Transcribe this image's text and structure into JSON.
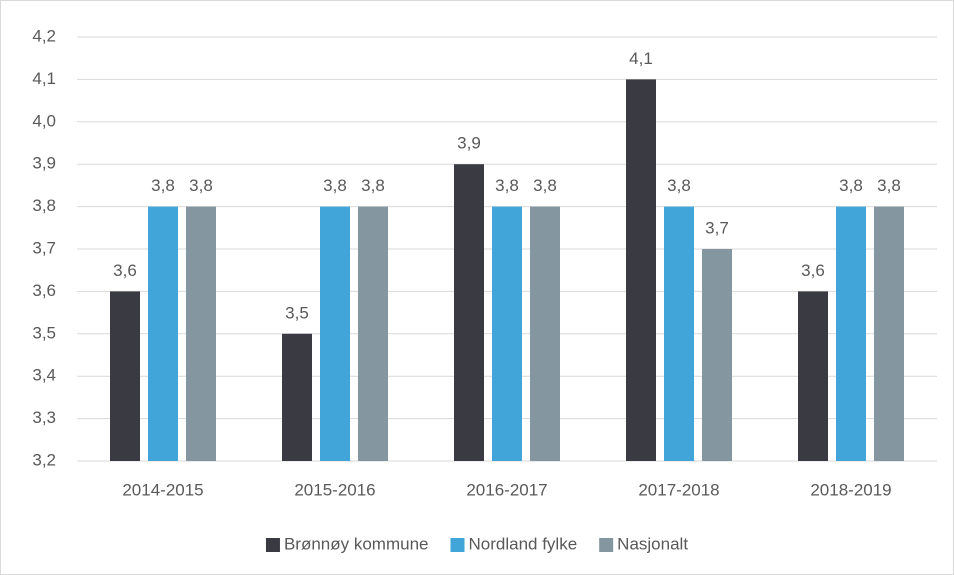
{
  "chart_data": {
    "type": "bar",
    "categories": [
      "2014-2015",
      "2015-2016",
      "2016-2017",
      "2017-2018",
      "2018-2019"
    ],
    "series": [
      {
        "name": "Brønnøy kommune",
        "color": "#3a3b42",
        "values": [
          3.6,
          3.5,
          3.9,
          4.1,
          3.6
        ],
        "value_labels": [
          "3,6",
          "3,5",
          "3,9",
          "4,1",
          "3,6"
        ]
      },
      {
        "name": "Nordland fylke",
        "color": "#41a5d9",
        "values": [
          3.8,
          3.8,
          3.8,
          3.8,
          3.8
        ],
        "value_labels": [
          "3,8",
          "3,8",
          "3,8",
          "3,8",
          "3,8"
        ]
      },
      {
        "name": "Nasjonalt",
        "color": "#8496a0",
        "values": [
          3.8,
          3.8,
          3.8,
          3.7,
          3.8
        ],
        "value_labels": [
          "3,8",
          "3,8",
          "3,8",
          "3,7",
          "3,8"
        ]
      }
    ],
    "ylim": [
      3.2,
      4.2
    ],
    "yticks": [
      {
        "value": 3.2,
        "label": "3,2"
      },
      {
        "value": 3.3,
        "label": "3,3"
      },
      {
        "value": 3.4,
        "label": "3,4"
      },
      {
        "value": 3.5,
        "label": "3,5"
      },
      {
        "value": 3.6,
        "label": "3,6"
      },
      {
        "value": 3.7,
        "label": "3,7"
      },
      {
        "value": 3.8,
        "label": "3,8"
      },
      {
        "value": 3.9,
        "label": "3,9"
      },
      {
        "value": 4.0,
        "label": "4,0"
      },
      {
        "value": 4.1,
        "label": "4,1"
      },
      {
        "value": 4.2,
        "label": "4,2"
      }
    ],
    "grid": true,
    "legend": "bottom"
  }
}
